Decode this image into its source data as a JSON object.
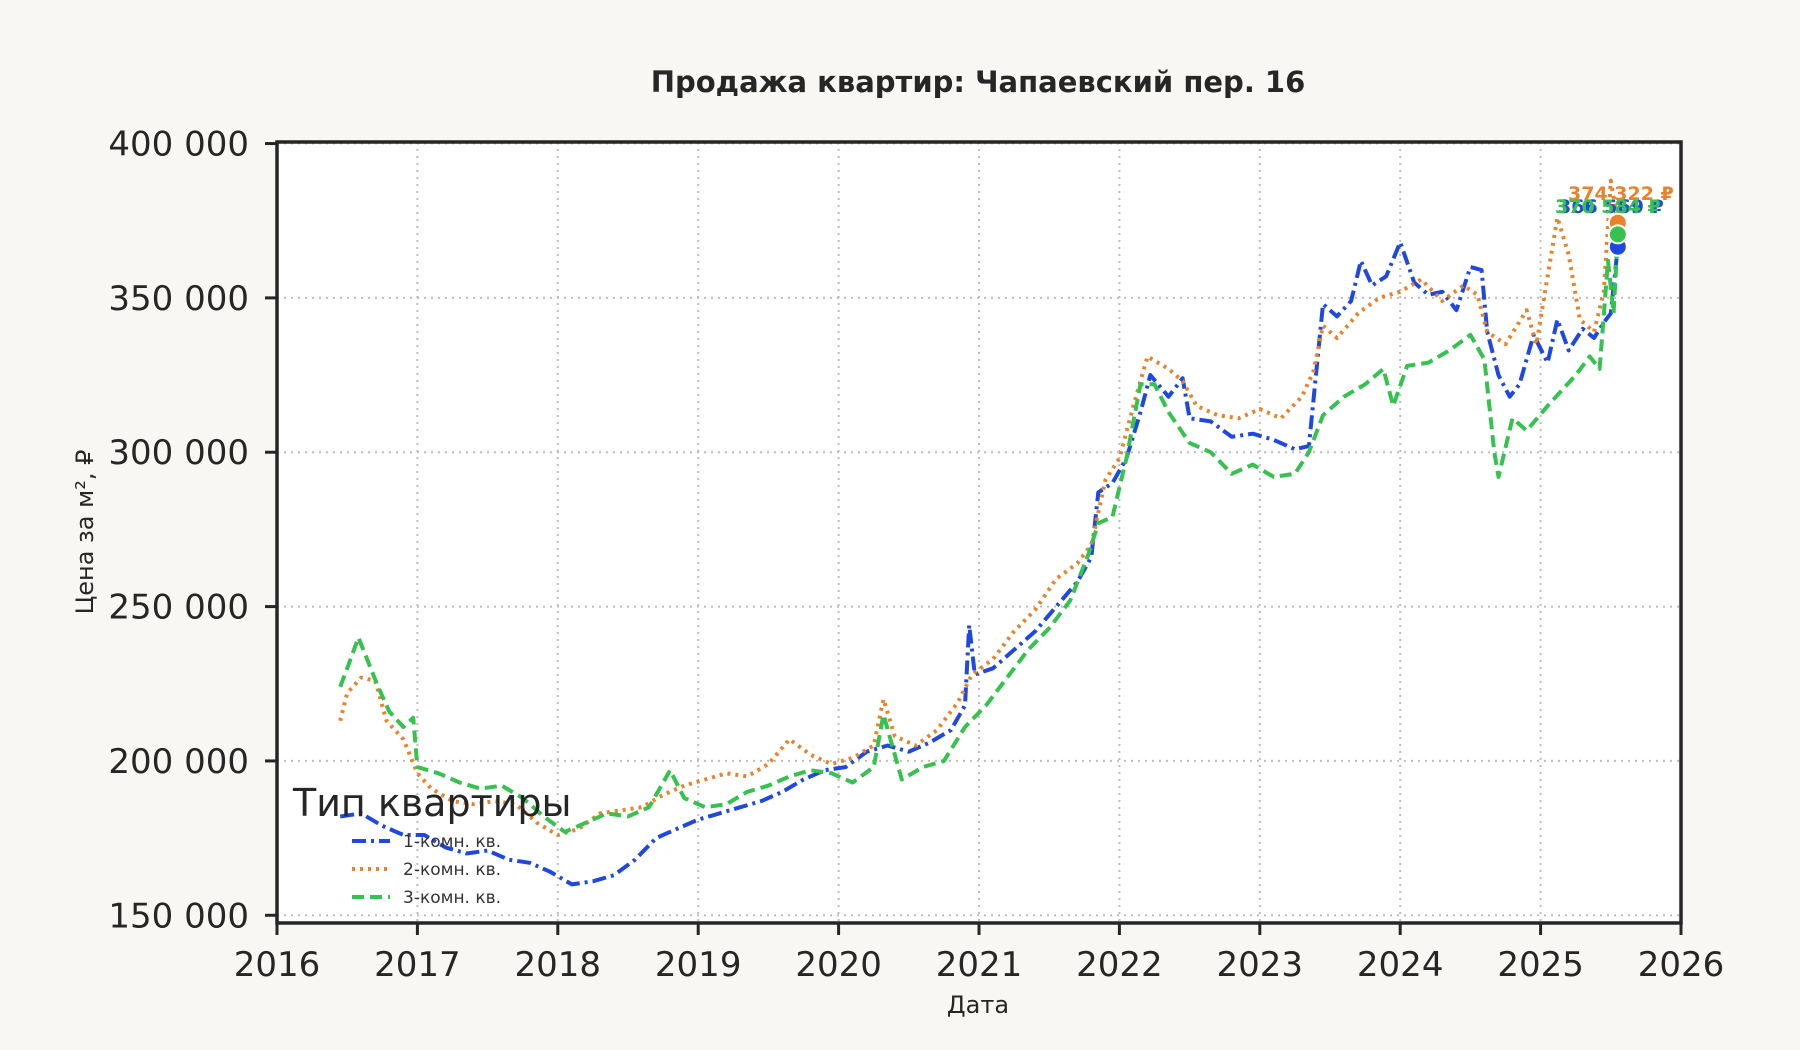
{
  "chart_data": {
    "type": "line",
    "title": "Продажа квартир: Чапаевский пер. 16",
    "xlabel": "Дата",
    "ylabel": "Цена за м², ₽",
    "xlim": [
      2016,
      2026
    ],
    "ylim": [
      147500,
      400500
    ],
    "x_ticks": [
      2016,
      2017,
      2018,
      2019,
      2020,
      2021,
      2022,
      2023,
      2024,
      2025,
      2026
    ],
    "y_ticks": [
      150000,
      200000,
      250000,
      300000,
      350000,
      400000
    ],
    "y_tick_labels": [
      "150 000",
      "200 000",
      "250 000",
      "300 000",
      "350 000",
      "400 000"
    ],
    "grid": true,
    "legend": {
      "title": "Тип квартиры",
      "placement": "lower-left"
    },
    "series": [
      {
        "name": "1-комн. кв.",
        "color": "#1f48e0",
        "dash": "dashdot",
        "end_value": 366569,
        "end_label": "366 569 ₽",
        "points": [
          [
            2016.45,
            182000
          ],
          [
            2016.6,
            183000
          ],
          [
            2016.75,
            179000
          ],
          [
            2016.9,
            176000
          ],
          [
            2017.05,
            176000
          ],
          [
            2017.2,
            172000
          ],
          [
            2017.35,
            170000
          ],
          [
            2017.5,
            171000
          ],
          [
            2017.65,
            168000
          ],
          [
            2017.8,
            167000
          ],
          [
            2017.95,
            164000
          ],
          [
            2018.1,
            160000
          ],
          [
            2018.25,
            161000
          ],
          [
            2018.4,
            163000
          ],
          [
            2018.55,
            168000
          ],
          [
            2018.7,
            175000
          ],
          [
            2018.85,
            178000
          ],
          [
            2019.0,
            181000
          ],
          [
            2019.15,
            183000
          ],
          [
            2019.3,
            185000
          ],
          [
            2019.45,
            187000
          ],
          [
            2019.6,
            190000
          ],
          [
            2019.75,
            194000
          ],
          [
            2019.9,
            197000
          ],
          [
            2020.05,
            198000
          ],
          [
            2020.2,
            203000
          ],
          [
            2020.35,
            205000
          ],
          [
            2020.5,
            203000
          ],
          [
            2020.65,
            206000
          ],
          [
            2020.8,
            210000
          ],
          [
            2020.9,
            218000
          ],
          [
            2020.93,
            244000
          ],
          [
            2020.97,
            228000
          ],
          [
            2021.1,
            230000
          ],
          [
            2021.25,
            236000
          ],
          [
            2021.4,
            242000
          ],
          [
            2021.55,
            250000
          ],
          [
            2021.7,
            258000
          ],
          [
            2021.8,
            266000
          ],
          [
            2021.85,
            287000
          ],
          [
            2021.95,
            290000
          ],
          [
            2022.05,
            298000
          ],
          [
            2022.15,
            313000
          ],
          [
            2022.22,
            325000
          ],
          [
            2022.35,
            318000
          ],
          [
            2022.45,
            324000
          ],
          [
            2022.5,
            311000
          ],
          [
            2022.65,
            310000
          ],
          [
            2022.8,
            305000
          ],
          [
            2022.95,
            306000
          ],
          [
            2023.1,
            304000
          ],
          [
            2023.25,
            301000
          ],
          [
            2023.35,
            302000
          ],
          [
            2023.45,
            348000
          ],
          [
            2023.55,
            344000
          ],
          [
            2023.65,
            349000
          ],
          [
            2023.72,
            362000
          ],
          [
            2023.8,
            354000
          ],
          [
            2023.9,
            357000
          ],
          [
            2024.0,
            368000
          ],
          [
            2024.1,
            355000
          ],
          [
            2024.2,
            351000
          ],
          [
            2024.3,
            352000
          ],
          [
            2024.4,
            346000
          ],
          [
            2024.5,
            360000
          ],
          [
            2024.58,
            359000
          ],
          [
            2024.62,
            339000
          ],
          [
            2024.7,
            325000
          ],
          [
            2024.78,
            318000
          ],
          [
            2024.85,
            322000
          ],
          [
            2024.95,
            338000
          ],
          [
            2025.05,
            329000
          ],
          [
            2025.12,
            343000
          ],
          [
            2025.2,
            333000
          ],
          [
            2025.3,
            340000
          ],
          [
            2025.38,
            337000
          ],
          [
            2025.45,
            342000
          ],
          [
            2025.5,
            345000
          ],
          [
            2025.55,
            366569
          ]
        ]
      },
      {
        "name": "2-комн. кв.",
        "color": "#e9822a",
        "dash": "dotted",
        "end_value": 374322,
        "end_label": "374 322 ₽",
        "points": [
          [
            2016.45,
            213000
          ],
          [
            2016.5,
            222000
          ],
          [
            2016.6,
            227000
          ],
          [
            2016.7,
            226000
          ],
          [
            2016.78,
            213000
          ],
          [
            2016.9,
            207000
          ],
          [
            2017.0,
            196000
          ],
          [
            2017.1,
            191000
          ],
          [
            2017.25,
            187000
          ],
          [
            2017.4,
            186000
          ],
          [
            2017.55,
            187000
          ],
          [
            2017.7,
            186000
          ],
          [
            2017.85,
            180000
          ],
          [
            2018.0,
            176000
          ],
          [
            2018.15,
            178000
          ],
          [
            2018.3,
            183000
          ],
          [
            2018.45,
            184000
          ],
          [
            2018.6,
            185000
          ],
          [
            2018.75,
            189000
          ],
          [
            2018.9,
            192000
          ],
          [
            2019.05,
            194000
          ],
          [
            2019.2,
            196000
          ],
          [
            2019.35,
            195000
          ],
          [
            2019.5,
            199000
          ],
          [
            2019.65,
            207000
          ],
          [
            2019.8,
            202000
          ],
          [
            2019.95,
            199000
          ],
          [
            2020.1,
            201000
          ],
          [
            2020.25,
            205000
          ],
          [
            2020.32,
            220000
          ],
          [
            2020.4,
            208000
          ],
          [
            2020.55,
            205000
          ],
          [
            2020.7,
            210000
          ],
          [
            2020.85,
            219000
          ],
          [
            2020.95,
            228000
          ],
          [
            2021.1,
            233000
          ],
          [
            2021.25,
            242000
          ],
          [
            2021.4,
            249000
          ],
          [
            2021.55,
            259000
          ],
          [
            2021.7,
            264000
          ],
          [
            2021.8,
            270000
          ],
          [
            2021.9,
            291000
          ],
          [
            2022.0,
            298000
          ],
          [
            2022.1,
            315000
          ],
          [
            2022.2,
            331000
          ],
          [
            2022.35,
            327000
          ],
          [
            2022.45,
            323000
          ],
          [
            2022.55,
            315000
          ],
          [
            2022.7,
            312000
          ],
          [
            2022.85,
            311000
          ],
          [
            2023.0,
            314000
          ],
          [
            2023.15,
            311000
          ],
          [
            2023.3,
            318000
          ],
          [
            2023.38,
            326000
          ],
          [
            2023.45,
            341000
          ],
          [
            2023.55,
            337000
          ],
          [
            2023.7,
            345000
          ],
          [
            2023.85,
            350000
          ],
          [
            2024.0,
            352000
          ],
          [
            2024.15,
            356000
          ],
          [
            2024.3,
            349000
          ],
          [
            2024.45,
            354000
          ],
          [
            2024.55,
            351000
          ],
          [
            2024.62,
            339000
          ],
          [
            2024.75,
            335000
          ],
          [
            2024.9,
            346000
          ],
          [
            2024.97,
            335000
          ],
          [
            2025.05,
            357000
          ],
          [
            2025.12,
            376000
          ],
          [
            2025.2,
            364000
          ],
          [
            2025.28,
            343000
          ],
          [
            2025.38,
            339000
          ],
          [
            2025.45,
            352000
          ],
          [
            2025.5,
            388000
          ],
          [
            2025.55,
            374322
          ]
        ]
      },
      {
        "name": "3-комн. кв.",
        "color": "#35c24f",
        "dash": "dashed",
        "end_value": 370584,
        "end_label": "370 584 ₽",
        "points": [
          [
            2016.45,
            224000
          ],
          [
            2016.5,
            230000
          ],
          [
            2016.58,
            240000
          ],
          [
            2016.65,
            232000
          ],
          [
            2016.72,
            224000
          ],
          [
            2016.8,
            216000
          ],
          [
            2016.9,
            211000
          ],
          [
            2016.97,
            214000
          ],
          [
            2017.0,
            198000
          ],
          [
            2017.15,
            196000
          ],
          [
            2017.3,
            193000
          ],
          [
            2017.45,
            191000
          ],
          [
            2017.6,
            192000
          ],
          [
            2017.75,
            188000
          ],
          [
            2017.9,
            182000
          ],
          [
            2018.05,
            177000
          ],
          [
            2018.2,
            180000
          ],
          [
            2018.35,
            183000
          ],
          [
            2018.5,
            182000
          ],
          [
            2018.65,
            185000
          ],
          [
            2018.8,
            197000
          ],
          [
            2018.9,
            188000
          ],
          [
            2019.05,
            185000
          ],
          [
            2019.2,
            186000
          ],
          [
            2019.35,
            190000
          ],
          [
            2019.5,
            192000
          ],
          [
            2019.65,
            195000
          ],
          [
            2019.8,
            197000
          ],
          [
            2019.95,
            196000
          ],
          [
            2020.1,
            193000
          ],
          [
            2020.25,
            198000
          ],
          [
            2020.32,
            215000
          ],
          [
            2020.45,
            194000
          ],
          [
            2020.6,
            198000
          ],
          [
            2020.75,
            200000
          ],
          [
            2020.9,
            211000
          ],
          [
            2021.05,
            218000
          ],
          [
            2021.2,
            227000
          ],
          [
            2021.35,
            236000
          ],
          [
            2021.5,
            243000
          ],
          [
            2021.65,
            252000
          ],
          [
            2021.78,
            267000
          ],
          [
            2021.85,
            277000
          ],
          [
            2021.95,
            279000
          ],
          [
            2022.05,
            298000
          ],
          [
            2022.15,
            322000
          ],
          [
            2022.25,
            322000
          ],
          [
            2022.35,
            313000
          ],
          [
            2022.5,
            303000
          ],
          [
            2022.65,
            300000
          ],
          [
            2022.8,
            293000
          ],
          [
            2022.95,
            296000
          ],
          [
            2023.1,
            292000
          ],
          [
            2023.25,
            293000
          ],
          [
            2023.35,
            300000
          ],
          [
            2023.45,
            312000
          ],
          [
            2023.6,
            318000
          ],
          [
            2023.75,
            322000
          ],
          [
            2023.88,
            327000
          ],
          [
            2023.95,
            315000
          ],
          [
            2024.05,
            328000
          ],
          [
            2024.2,
            329000
          ],
          [
            2024.35,
            333000
          ],
          [
            2024.5,
            338000
          ],
          [
            2024.6,
            330000
          ],
          [
            2024.67,
            300000
          ],
          [
            2024.7,
            292000
          ],
          [
            2024.8,
            311000
          ],
          [
            2024.9,
            307000
          ],
          [
            2025.05,
            315000
          ],
          [
            2025.15,
            320000
          ],
          [
            2025.25,
            325000
          ],
          [
            2025.35,
            331000
          ],
          [
            2025.42,
            327000
          ],
          [
            2025.48,
            362000
          ],
          [
            2025.52,
            345000
          ],
          [
            2025.55,
            370584
          ]
        ]
      }
    ]
  }
}
